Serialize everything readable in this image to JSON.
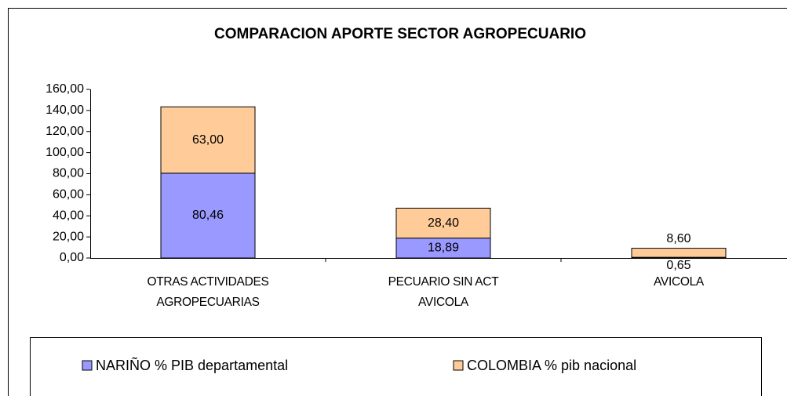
{
  "chart_data": {
    "type": "bar",
    "stacked": true,
    "title": "COMPARACION APORTE SECTOR AGROPECUARIO",
    "categories": [
      "OTRAS ACTIVIDADES AGROPECUARIAS",
      "PECUARIO SIN ACT AVICOLA",
      "AVICOLA"
    ],
    "series": [
      {
        "name": "NARIÑO % PIB departamental",
        "color": "#9999ff",
        "values": [
          80.46,
          18.89,
          0.65
        ],
        "value_labels": [
          "80,46",
          "18,89",
          "0,65"
        ]
      },
      {
        "name": "COLOMBIA % pib nacional",
        "color": "#ffcc99",
        "values": [
          63.0,
          28.4,
          8.6
        ],
        "value_labels": [
          "63,00",
          "28,40",
          "8,60"
        ]
      }
    ],
    "ylim": [
      0,
      160
    ],
    "yticks": [
      {
        "value": 0,
        "label": "0,00"
      },
      {
        "value": 20,
        "label": "20,00"
      },
      {
        "value": 40,
        "label": "40,00"
      },
      {
        "value": 60,
        "label": "60,00"
      },
      {
        "value": 80,
        "label": "80,00"
      },
      {
        "value": 100,
        "label": "100,00"
      },
      {
        "value": 120,
        "label": "120,00"
      },
      {
        "value": 140,
        "label": "140,00"
      },
      {
        "value": 160,
        "label": "160,00"
      }
    ],
    "legend": "bottom"
  }
}
